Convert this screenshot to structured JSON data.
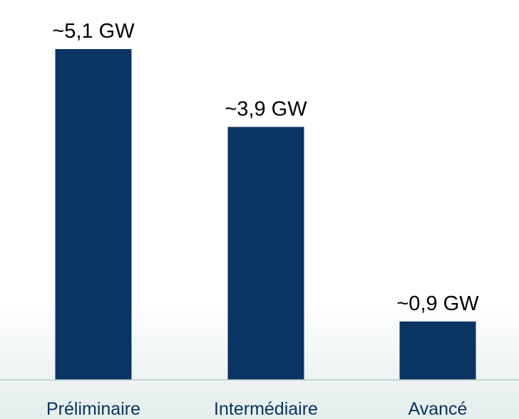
{
  "chart_data": {
    "type": "bar",
    "categories": [
      "Préliminaire",
      "Intermédiaire",
      "Avancé"
    ],
    "values": [
      5.1,
      3.9,
      0.9
    ],
    "data_labels": [
      "~5,1 GW",
      "~3,9 GW",
      "~0,9 GW"
    ],
    "unit": "GW",
    "ylim": [
      0,
      5.1
    ],
    "grid": false,
    "legend": "none",
    "colors": {
      "bar": "#0a3461",
      "category_text": "#0a3461",
      "label_text": "#000000"
    }
  }
}
